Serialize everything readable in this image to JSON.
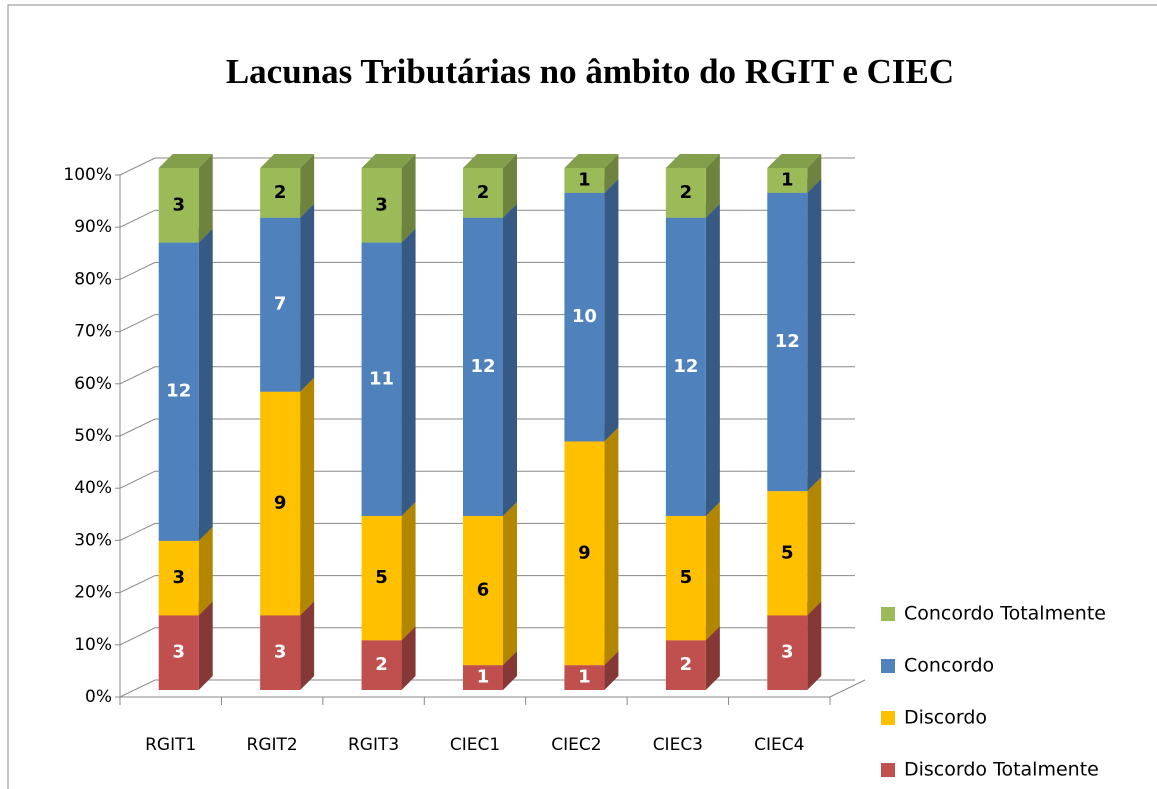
{
  "chart_data": {
    "type": "bar",
    "stacking": "percent",
    "title": "Lacunas Tributárias no âmbito do RGIT e CIEC",
    "categories": [
      "RGIT1",
      "RGIT2",
      "RGIT3",
      "CIEC1",
      "CIEC2",
      "CIEC3",
      "CIEC4"
    ],
    "series": [
      {
        "name": "Discordo Totalmente",
        "color": "#c0504d",
        "values": [
          3,
          3,
          2,
          1,
          1,
          2,
          3
        ]
      },
      {
        "name": "Discordo",
        "color": "#ffc000",
        "values": [
          3,
          9,
          5,
          6,
          9,
          5,
          5
        ]
      },
      {
        "name": "Concordo",
        "color": "#4f81bd",
        "values": [
          12,
          7,
          11,
          12,
          10,
          12,
          12
        ]
      },
      {
        "name": "Concordo Totalmente",
        "color": "#9bbb59",
        "values": [
          3,
          2,
          3,
          2,
          1,
          2,
          1
        ]
      }
    ],
    "ylim": [
      0,
      100
    ],
    "yticks": [
      {
        "value": 0,
        "label": "0%"
      },
      {
        "value": 10,
        "label": "10%"
      },
      {
        "value": 20,
        "label": "20%"
      },
      {
        "value": 30,
        "label": "30%"
      },
      {
        "value": 40,
        "label": "40%"
      },
      {
        "value": 50,
        "label": "50%"
      },
      {
        "value": 60,
        "label": "60%"
      },
      {
        "value": 70,
        "label": "70%"
      },
      {
        "value": 80,
        "label": "80%"
      },
      {
        "value": 90,
        "label": "90%"
      },
      {
        "value": 100,
        "label": "100%"
      }
    ],
    "grid": true,
    "legend": "right"
  }
}
